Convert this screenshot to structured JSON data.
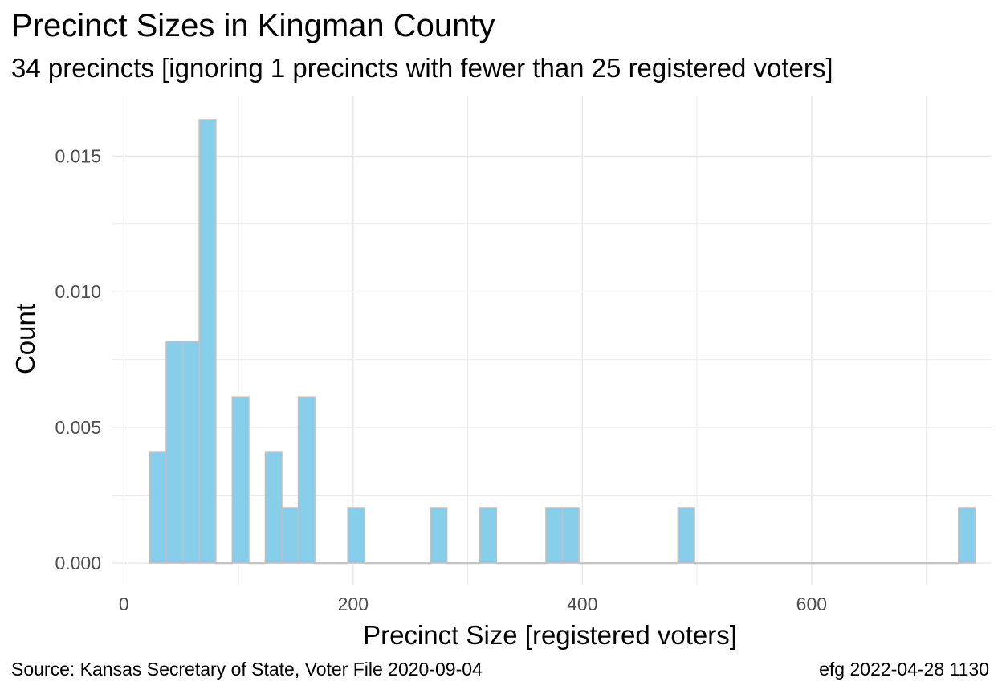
{
  "title": "Precinct Sizes in Kingman County",
  "subtitle": "34 precincts [ignoring 1 precincts with fewer than 25 registered voters]",
  "footer": {
    "source": "Source:  Kansas Secretary of State, Voter File  2020-09-04",
    "credit": "efg 2022-04-28 1130"
  },
  "colors": {
    "bar_fill": "#87ceeb",
    "bar_stroke": "#c0c0c0",
    "grid": "#ebebeb"
  },
  "chart_data": {
    "type": "bar",
    "title": "Precinct Sizes in Kingman County",
    "subtitle": "34 precincts [ignoring 1 precincts with fewer than 25 registered voters]",
    "xlabel": "Precinct Size [registered voters]",
    "ylabel": "Count",
    "xlim": [
      -10,
      757
    ],
    "ylim": [
      -0.0008,
      0.0172
    ],
    "x_ticks": [
      0,
      200,
      400,
      600
    ],
    "y_ticks": [
      0.0,
      0.005,
      0.01,
      0.015
    ],
    "y_tick_labels": [
      "0.000",
      "0.005",
      "0.010",
      "0.015"
    ],
    "bin_width": 14.4,
    "grid": true,
    "bins": [
      {
        "x0": 22.6,
        "x1": 37.0,
        "density": 0.00408
      },
      {
        "x0": 37.0,
        "x1": 51.4,
        "density": 0.00816
      },
      {
        "x0": 51.4,
        "x1": 65.8,
        "density": 0.00816
      },
      {
        "x0": 65.8,
        "x1": 80.2,
        "density": 0.01634
      },
      {
        "x0": 80.2,
        "x1": 94.6,
        "density": 0.0
      },
      {
        "x0": 94.6,
        "x1": 109.0,
        "density": 0.00612
      },
      {
        "x0": 109.0,
        "x1": 123.4,
        "density": 0.0
      },
      {
        "x0": 123.4,
        "x1": 137.8,
        "density": 0.00408
      },
      {
        "x0": 137.8,
        "x1": 152.2,
        "density": 0.00204
      },
      {
        "x0": 152.2,
        "x1": 166.6,
        "density": 0.00612
      },
      {
        "x0": 166.6,
        "x1": 195.4,
        "density": 0.0
      },
      {
        "x0": 195.4,
        "x1": 209.8,
        "density": 0.00204
      },
      {
        "x0": 209.8,
        "x1": 267.4,
        "density": 0.0
      },
      {
        "x0": 267.4,
        "x1": 281.8,
        "density": 0.00204
      },
      {
        "x0": 281.8,
        "x1": 310.6,
        "density": 0.0
      },
      {
        "x0": 310.6,
        "x1": 325.0,
        "density": 0.00204
      },
      {
        "x0": 325.0,
        "x1": 368.2,
        "density": 0.0
      },
      {
        "x0": 368.2,
        "x1": 382.6,
        "density": 0.00204
      },
      {
        "x0": 382.6,
        "x1": 397.0,
        "density": 0.00204
      },
      {
        "x0": 397.0,
        "x1": 483.4,
        "density": 0.0
      },
      {
        "x0": 483.4,
        "x1": 497.8,
        "density": 0.00204
      },
      {
        "x0": 497.8,
        "x1": 728.2,
        "density": 0.0
      },
      {
        "x0": 728.2,
        "x1": 742.6,
        "density": 0.00204
      }
    ]
  }
}
